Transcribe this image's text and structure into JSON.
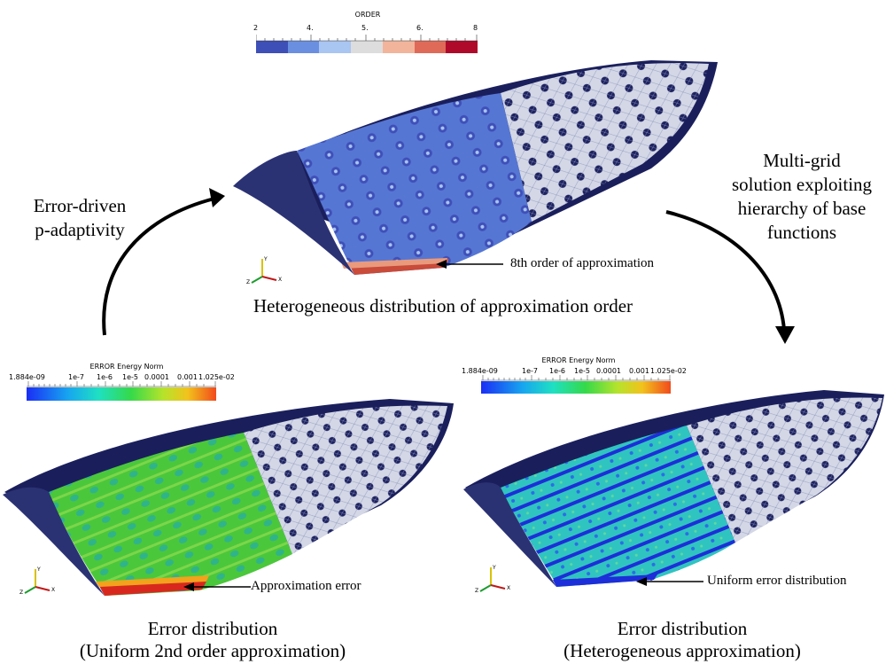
{
  "top_panel": {
    "colorbar": {
      "title": "ORDER",
      "ticks": [
        "2",
        "4.",
        "5.",
        "6.",
        "8"
      ],
      "colors": [
        "#3f4fb8",
        "#6b8fe0",
        "#a9c5f2",
        "#dddddd",
        "#f2b49b",
        "#df6a58",
        "#b00a2a"
      ]
    },
    "annotation": "8th order of approximation",
    "caption": "Heterogeneous distribution of approximation order"
  },
  "left_arrow_label": [
    "Error-driven",
    "p-adaptivity"
  ],
  "right_arrow_label": [
    "Multi-grid",
    "solution exploiting",
    "hierarchy of base",
    "functions"
  ],
  "bottom_left_panel": {
    "colorbar": {
      "title": "ERROR Energy Norm",
      "ticks": [
        "1.884e-09",
        "1e-7",
        "1e-6",
        "1e-5",
        "0.0001",
        "0.001",
        "1.025e-02"
      ]
    },
    "annotation": "Approximation error",
    "caption": [
      "Error distribution",
      "(Uniform 2nd order approximation)"
    ]
  },
  "bottom_right_panel": {
    "colorbar": {
      "title": "ERROR Energy Norm",
      "ticks": [
        "1.884e-09",
        "1e-7",
        "1e-6",
        "1e-5",
        "0.0001",
        "0.001",
        "1.025e-02"
      ]
    },
    "annotation": "Uniform error distribution",
    "caption": [
      "Error distribution",
      "(Heterogeneous approximation)"
    ]
  },
  "axes_triad": {
    "x": "X",
    "y": "Y",
    "z": "Z"
  },
  "colors": {
    "mesh_dark": "#1a1f5c",
    "mesh_light": "#cfd3e3",
    "order_blue": "#4f6fd0",
    "error_green": "#48c23a",
    "error_cyan": "#2fc6c6",
    "error_blue": "#1c2fd8",
    "error_red": "#d42020"
  }
}
